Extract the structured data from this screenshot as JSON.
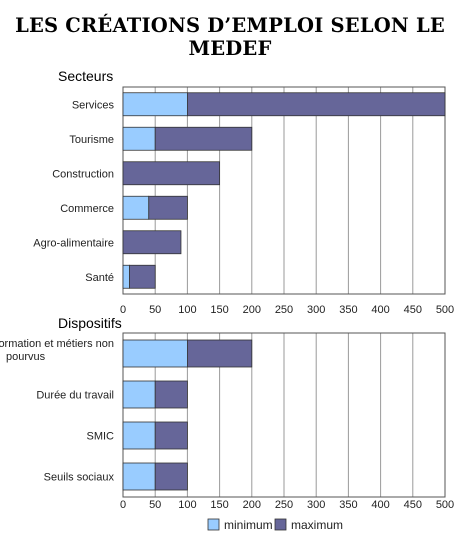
{
  "title": "LES CRÉATIONS D’EMPLOI SELON LE MEDEF",
  "colors": {
    "minimum": "#99ccff",
    "maximum": "#666699",
    "grid": "#9a9a9a"
  },
  "legend": [
    "minimum",
    "maximum"
  ],
  "chart_data": [
    {
      "type": "bar",
      "orientation": "horizontal",
      "stacked": true,
      "title": "Secteurs",
      "categories": [
        "Services",
        "Tourisme",
        "Construction",
        "Commerce",
        "Agro-alimentaire",
        "Santé"
      ],
      "series": [
        {
          "name": "minimum",
          "values": [
            100,
            50,
            0,
            40,
            0,
            10
          ]
        },
        {
          "name": "maximum",
          "values": [
            400,
            150,
            150,
            60,
            90,
            40
          ]
        }
      ],
      "xlim": [
        0,
        500
      ],
      "xticks": [
        "0",
        "50",
        "100",
        "150",
        "200",
        "250",
        "300",
        "350",
        "400",
        "450",
        "500"
      ],
      "grid": true,
      "legend_position": "bottom"
    },
    {
      "type": "bar",
      "orientation": "horizontal",
      "stacked": true,
      "title": "Dispositifs",
      "categories": [
        [
          "Formation et métiers non",
          "pourvus"
        ],
        [
          "Durée du travail"
        ],
        [
          "SMIC"
        ],
        [
          "Seuils sociaux"
        ]
      ],
      "series": [
        {
          "name": "minimum",
          "values": [
            100,
            50,
            50,
            50
          ]
        },
        {
          "name": "maximum",
          "values": [
            100,
            50,
            50,
            50
          ]
        }
      ],
      "xlim": [
        0,
        500
      ],
      "xticks": [
        "0",
        "50",
        "100",
        "150",
        "200",
        "250",
        "300",
        "350",
        "400",
        "450",
        "500"
      ],
      "grid": true,
      "legend_position": "bottom"
    }
  ]
}
